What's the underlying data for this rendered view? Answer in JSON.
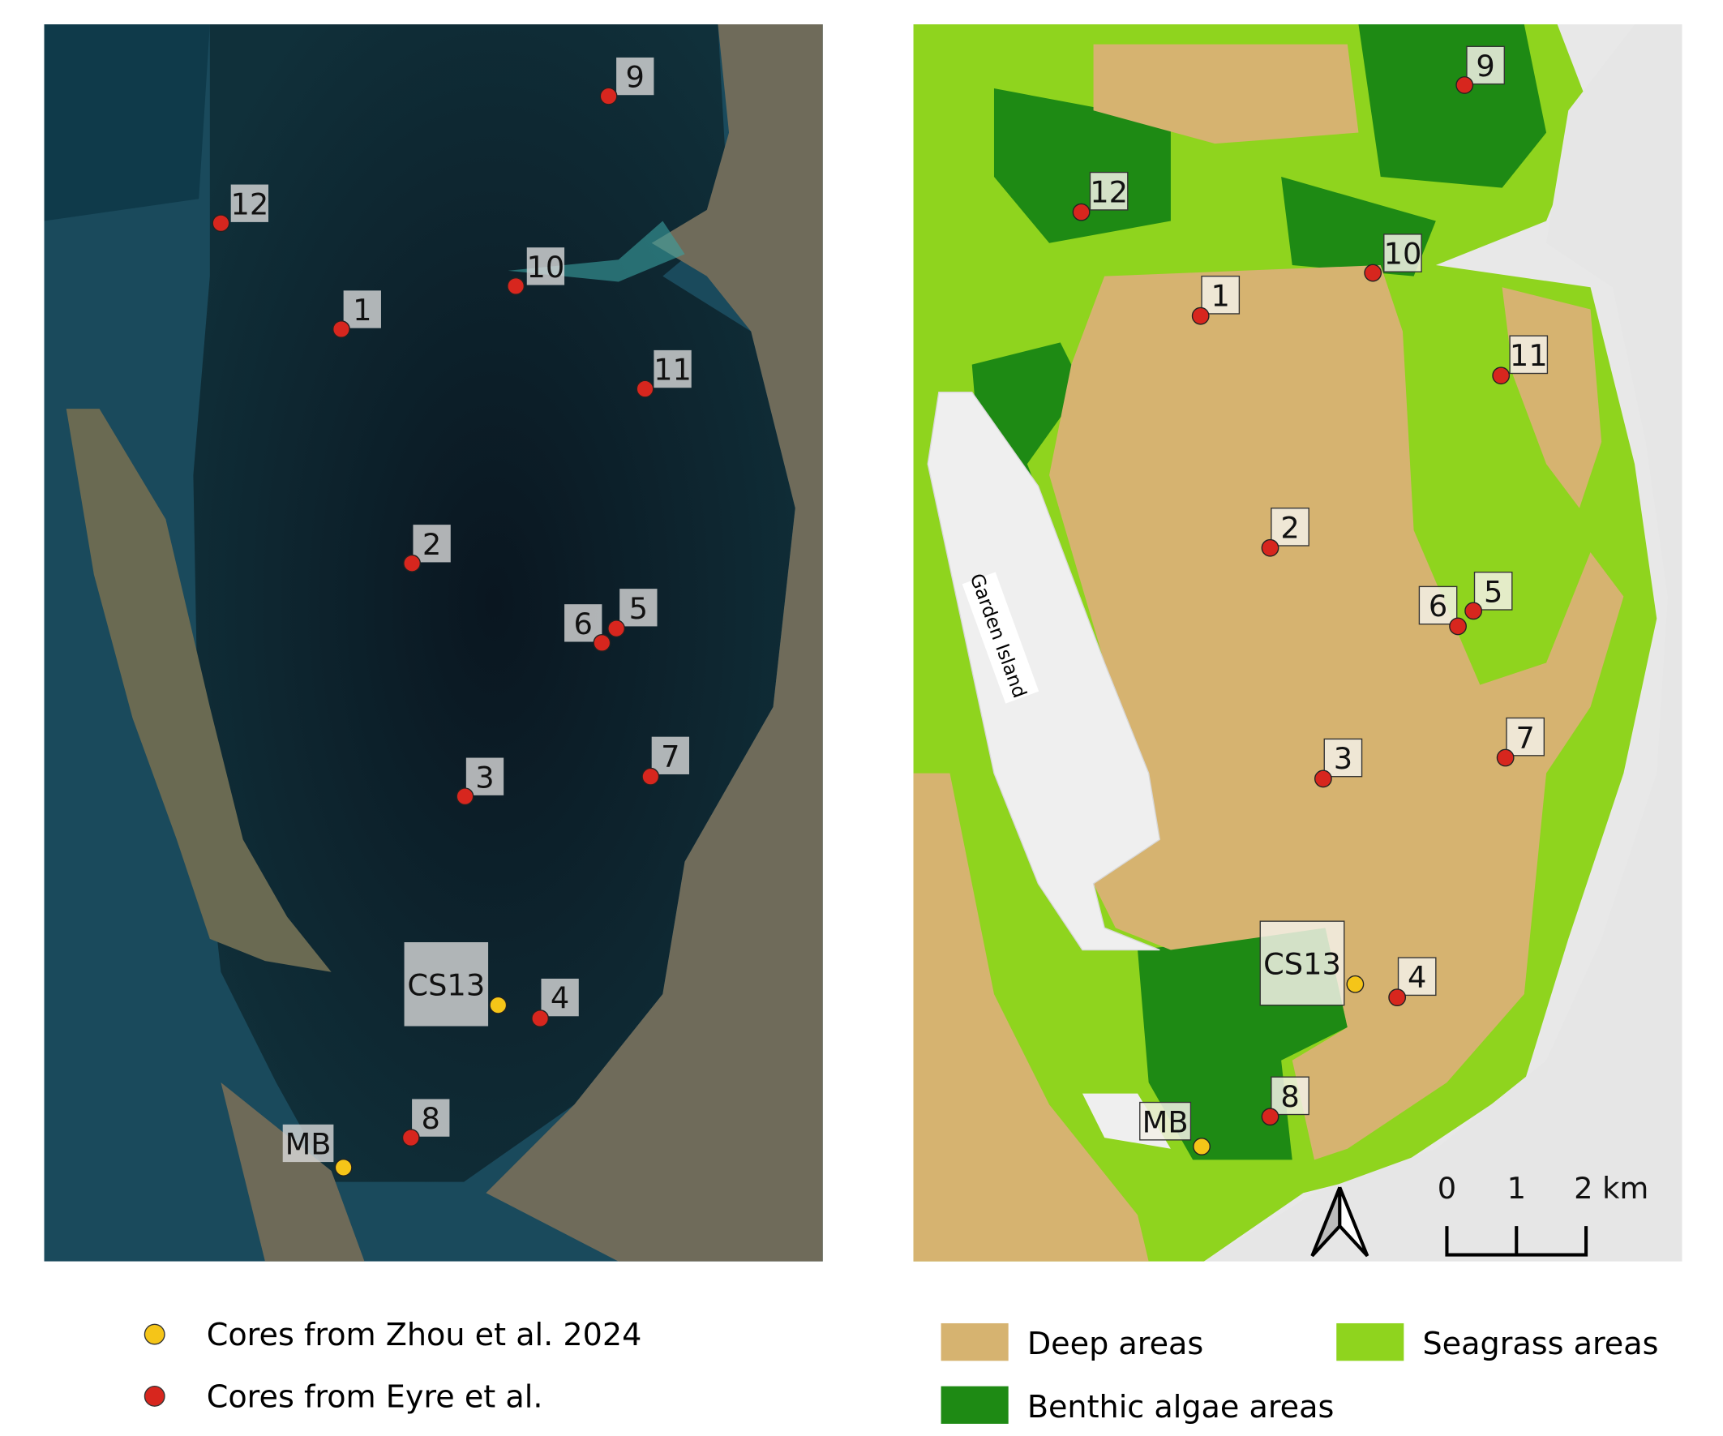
{
  "maps": {
    "satellite": {
      "sites": [
        {
          "id": "9",
          "type": "eyre",
          "dot": [
            551,
            87
          ],
          "box": [
            558,
            52
          ]
        },
        {
          "id": "12",
          "type": "eyre",
          "dot": [
            200,
            202
          ],
          "box": [
            209,
            167
          ]
        },
        {
          "id": "10",
          "type": "eyre",
          "dot": [
            467,
            259
          ],
          "box": [
            477,
            224
          ]
        },
        {
          "id": "1",
          "type": "eyre",
          "dot": [
            309,
            298
          ],
          "box": [
            311,
            263
          ]
        },
        {
          "id": "11",
          "type": "eyre",
          "dot": [
            584,
            352
          ],
          "box": [
            592,
            317
          ]
        },
        {
          "id": "2",
          "type": "eyre",
          "dot": [
            373,
            510
          ],
          "box": [
            374,
            475
          ]
        },
        {
          "id": "6",
          "type": "eyre",
          "dot": [
            545,
            582
          ],
          "box": [
            511,
            547
          ]
        },
        {
          "id": "5",
          "type": "eyre",
          "dot": [
            558,
            569
          ],
          "box": [
            561,
            533
          ]
        },
        {
          "id": "7",
          "type": "eyre",
          "dot": [
            589,
            703
          ],
          "box": [
            590,
            667
          ]
        },
        {
          "id": "3",
          "type": "eyre",
          "dot": [
            421,
            721
          ],
          "box": [
            422,
            686
          ]
        },
        {
          "id": "4",
          "type": "eyre",
          "dot": [
            489,
            922
          ],
          "box": [
            490,
            886
          ]
        },
        {
          "id": "8",
          "type": "eyre",
          "dot": [
            372,
            1030
          ],
          "box": [
            373,
            995
          ]
        },
        {
          "id": "CS13",
          "type": "zhou",
          "dot": [
            451,
            910
          ],
          "box": [
            366,
            853
          ],
          "big": true
        },
        {
          "id": "MB",
          "type": "zhou",
          "dot": [
            311,
            1057
          ],
          "box": [
            256,
            1018
          ]
        }
      ]
    },
    "habitat": {
      "island_label": "Garden Island",
      "sites": [
        {
          "id": "9",
          "type": "eyre",
          "dot": [
            1326,
            77
          ],
          "box": [
            1328,
            42
          ]
        },
        {
          "id": "12",
          "type": "eyre",
          "dot": [
            979,
            192
          ],
          "box": [
            987,
            156
          ]
        },
        {
          "id": "10",
          "type": "eyre",
          "dot": [
            1243,
            247
          ],
          "box": [
            1253,
            212
          ]
        },
        {
          "id": "1",
          "type": "eyre",
          "dot": [
            1087,
            286
          ],
          "box": [
            1088,
            250
          ]
        },
        {
          "id": "11",
          "type": "eyre",
          "dot": [
            1359,
            340
          ],
          "box": [
            1367,
            304
          ]
        },
        {
          "id": "2",
          "type": "eyre",
          "dot": [
            1150,
            496
          ],
          "box": [
            1151,
            460
          ]
        },
        {
          "id": "6",
          "type": "eyre",
          "dot": [
            1320,
            567
          ],
          "box": [
            1285,
            531
          ]
        },
        {
          "id": "5",
          "type": "eyre",
          "dot": [
            1334,
            553
          ],
          "box": [
            1335,
            518
          ]
        },
        {
          "id": "7",
          "type": "eyre",
          "dot": [
            1363,
            686
          ],
          "box": [
            1364,
            650
          ]
        },
        {
          "id": "3",
          "type": "eyre",
          "dot": [
            1198,
            705
          ],
          "box": [
            1199,
            669
          ]
        },
        {
          "id": "4",
          "type": "eyre",
          "dot": [
            1265,
            903
          ],
          "box": [
            1266,
            867
          ]
        },
        {
          "id": "8",
          "type": "eyre",
          "dot": [
            1150,
            1011
          ],
          "box": [
            1151,
            975
          ]
        },
        {
          "id": "CS13",
          "type": "zhou",
          "dot": [
            1227,
            891
          ],
          "box": [
            1141,
            834
          ],
          "big": true
        },
        {
          "id": "MB",
          "type": "zhou",
          "dot": [
            1088,
            1038
          ],
          "box": [
            1032,
            998
          ]
        }
      ],
      "scale_bar": {
        "ticks": [
          "0",
          "1",
          "2 km"
        ]
      }
    }
  },
  "legend": {
    "points": [
      {
        "label": "Cores from Zhou et al. 2024",
        "color": "#f5c518"
      },
      {
        "label": "Cores from Eyre et al.",
        "color": "#d7261e"
      }
    ],
    "areas": [
      {
        "label": "Deep areas",
        "color": "#d6b370"
      },
      {
        "label": "Seagrass areas",
        "color": "#8fd41e"
      },
      {
        "label": "Benthic algae areas",
        "color": "#1e8a14"
      }
    ]
  },
  "colors": {
    "eyre": "#d7261e",
    "zhou": "#f5c518",
    "sea": "#0c1a26",
    "land": "#6e6a58",
    "landgray": "#e6e6e6"
  }
}
